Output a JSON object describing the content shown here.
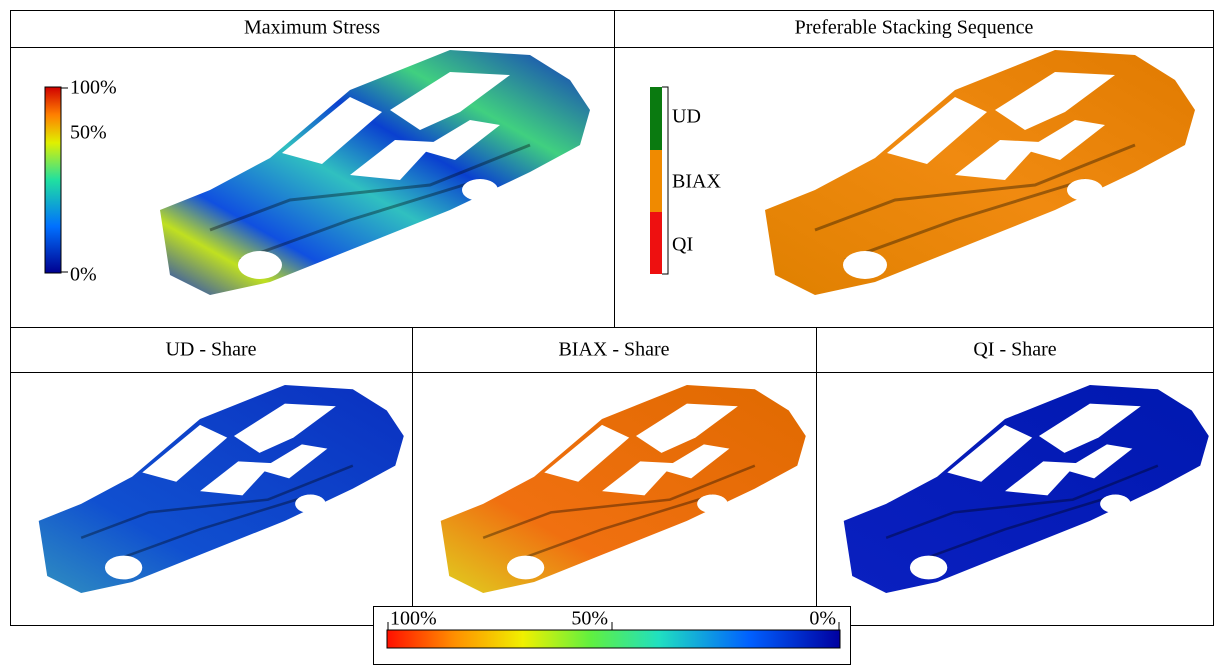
{
  "panels": [
    {
      "title": "Maximum Stress",
      "legend": [
        "100%",
        "50%",
        "0%"
      ]
    },
    {
      "title": "Preferable Stacking Sequence",
      "legend": [
        "UD",
        "BIAX",
        "QI"
      ]
    },
    {
      "title": "UD - Share"
    },
    {
      "title": "BIAX - Share"
    },
    {
      "title": "QI - Share"
    }
  ],
  "shared_colorbar": {
    "labels": [
      "100%",
      "50%",
      "0%"
    ]
  }
}
